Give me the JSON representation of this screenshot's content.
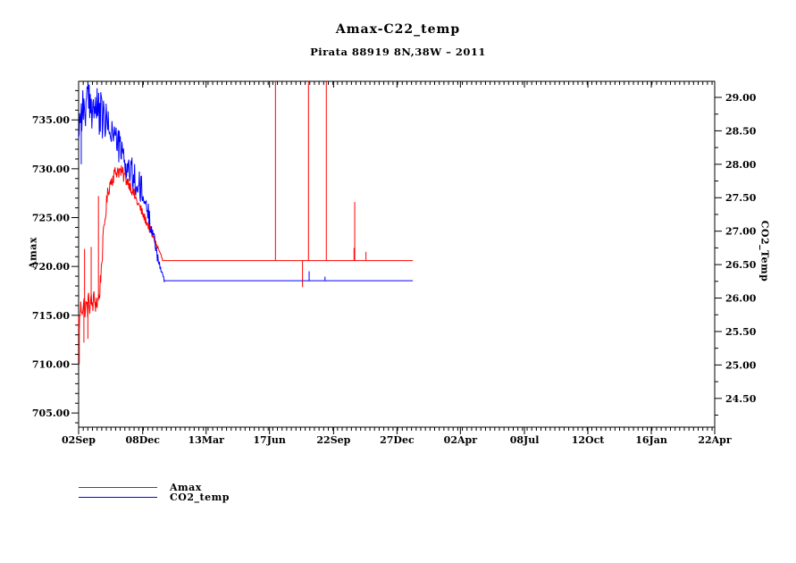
{
  "chart_data": {
    "type": "line",
    "title": "Amax-C22_temp",
    "subtitle": "Pirata 88919 8N,38W – 2011",
    "background_color": "#ffffff",
    "frame_color": "#000000",
    "grid": false,
    "sample_step_days": 0.8,
    "x_axis": {
      "min_day": 0,
      "max_day": 963,
      "minor_tick_step_days": 7,
      "major_ticks": [
        {
          "day": 0,
          "label": "02Sep"
        },
        {
          "day": 97,
          "label": "08Dec"
        },
        {
          "day": 193,
          "label": "13Mar"
        },
        {
          "day": 289,
          "label": "17Jun"
        },
        {
          "day": 386,
          "label": "22Sep"
        },
        {
          "day": 482,
          "label": "27Dec"
        },
        {
          "day": 578,
          "label": "02Apr"
        },
        {
          "day": 675,
          "label": "08Jul"
        },
        {
          "day": 771,
          "label": "12Oct"
        },
        {
          "day": 867,
          "label": "16Jan"
        },
        {
          "day": 963,
          "label": "22Apr"
        }
      ]
    },
    "left_axis": {
      "label": "Amax",
      "min": 703.55,
      "max": 738.95,
      "minor_step": 1.0,
      "major_ticks": [
        {
          "value": 735,
          "label": "735.00"
        },
        {
          "value": 730,
          "label": "730.00"
        },
        {
          "value": 725,
          "label": "725.00"
        },
        {
          "value": 720,
          "label": "720.00"
        },
        {
          "value": 715,
          "label": "715.00"
        },
        {
          "value": 710,
          "label": "710.00"
        },
        {
          "value": 705,
          "label": "705.00"
        }
      ]
    },
    "right_axis": {
      "label": "CO2_Temp",
      "min": 24.07,
      "max": 29.24,
      "minor_step": 0.25,
      "major_ticks": [
        {
          "value": 29.0,
          "label": "29.00"
        },
        {
          "value": 28.5,
          "label": "28.50"
        },
        {
          "value": 28.0,
          "label": "28.00"
        },
        {
          "value": 27.5,
          "label": "27.50"
        },
        {
          "value": 27.0,
          "label": "27.00"
        },
        {
          "value": 26.5,
          "label": "26.50"
        },
        {
          "value": 26.0,
          "label": "26.00"
        },
        {
          "value": 25.5,
          "label": "25.50"
        },
        {
          "value": 25.0,
          "label": "25.00"
        },
        {
          "value": 24.5,
          "label": "24.50"
        }
      ]
    },
    "series": [
      {
        "name": "Amax",
        "color": "#ff0000",
        "axis": "left",
        "seed": 1234,
        "anchors": [
          [
            0,
            714.3
          ],
          [
            1,
            713.2
          ],
          [
            2,
            715.2
          ],
          [
            4,
            715.9
          ],
          [
            8,
            716.1
          ],
          [
            12,
            715.7
          ],
          [
            16,
            716.3
          ],
          [
            20,
            716.1
          ],
          [
            24,
            716.5
          ],
          [
            28,
            716.3
          ],
          [
            31,
            716.8
          ],
          [
            33,
            718.5
          ],
          [
            36,
            721.5
          ],
          [
            39,
            724.2
          ],
          [
            42,
            726.3
          ],
          [
            45,
            727.8
          ],
          [
            48,
            728.6
          ],
          [
            52,
            729.2
          ],
          [
            56,
            729.6
          ],
          [
            59,
            729.9
          ],
          [
            63,
            729.7
          ],
          [
            67,
            729.4
          ],
          [
            71,
            729.1
          ],
          [
            75,
            728.7
          ],
          [
            80,
            728.0
          ],
          [
            86,
            727.0
          ],
          [
            92,
            726.1
          ],
          [
            98,
            725.2
          ],
          [
            104,
            724.4
          ],
          [
            109,
            723.6
          ],
          [
            114,
            722.8
          ],
          [
            118,
            722.2
          ],
          [
            122,
            721.6
          ],
          [
            125,
            721.1
          ],
          [
            127,
            720.6
          ]
        ],
        "noise_segments": [
          [
            0,
            31,
            1.3
          ],
          [
            31,
            38,
            1.0
          ],
          [
            38,
            75,
            0.8
          ],
          [
            75,
            95,
            0.65
          ],
          [
            95,
            112,
            0.5
          ],
          [
            112,
            121,
            0.35
          ],
          [
            121,
            127,
            0.15
          ]
        ],
        "flat": {
          "from_day": 127,
          "to_day": 506,
          "value": 720.6
        },
        "spikes": [
          [
            1,
            710.0
          ],
          [
            8,
            712.2
          ],
          [
            9,
            721.8
          ],
          [
            14,
            712.6
          ],
          [
            19,
            722.0
          ],
          [
            30,
            727.2
          ],
          [
            298,
            739.5
          ],
          [
            339,
            717.9
          ],
          [
            348,
            739.5
          ],
          [
            375,
            739.5
          ],
          [
            417,
            721.9
          ],
          [
            418,
            726.6
          ],
          [
            435,
            721.5
          ]
        ]
      },
      {
        "name": "CO2_temp",
        "color": "#0000ff",
        "axis": "right",
        "seed": 99,
        "anchors": [
          [
            0,
            28.55
          ],
          [
            2,
            28.72
          ],
          [
            5,
            28.85
          ],
          [
            9,
            28.82
          ],
          [
            13,
            28.9
          ],
          [
            17,
            28.86
          ],
          [
            21,
            28.9
          ],
          [
            25,
            28.84
          ],
          [
            29,
            28.78
          ],
          [
            33,
            28.73
          ],
          [
            37,
            28.68
          ],
          [
            41,
            28.63
          ],
          [
            45,
            28.58
          ],
          [
            49,
            28.52
          ],
          [
            53,
            28.46
          ],
          [
            57,
            28.38
          ],
          [
            61,
            28.28
          ],
          [
            65,
            28.16
          ],
          [
            69,
            28.05
          ],
          [
            74,
            27.95
          ],
          [
            80,
            27.85
          ],
          [
            86,
            27.74
          ],
          [
            92,
            27.63
          ],
          [
            98,
            27.5
          ],
          [
            103,
            27.36
          ],
          [
            108,
            27.18
          ],
          [
            112,
            27.0
          ],
          [
            116,
            26.8
          ],
          [
            120,
            26.6
          ],
          [
            124,
            26.44
          ],
          [
            127,
            26.34
          ],
          [
            130,
            26.26
          ]
        ],
        "noise_segments": [
          [
            0,
            42,
            0.36
          ],
          [
            42,
            60,
            0.22
          ],
          [
            60,
            72,
            0.26
          ],
          [
            72,
            100,
            0.28
          ],
          [
            100,
            110,
            0.16
          ],
          [
            110,
            120,
            0.1
          ],
          [
            120,
            130,
            0.04
          ]
        ],
        "flat": {
          "from_day": 130,
          "to_day": 506,
          "value": 26.26
        },
        "spikes": [
          [
            4,
            28.0
          ],
          [
            349,
            26.4
          ],
          [
            373,
            26.32
          ]
        ]
      }
    ],
    "legend": {
      "entries": [
        {
          "label": "Amax",
          "color": "#ff0000"
        },
        {
          "label": "CO2_temp",
          "color": "#0000ff"
        }
      ]
    }
  }
}
